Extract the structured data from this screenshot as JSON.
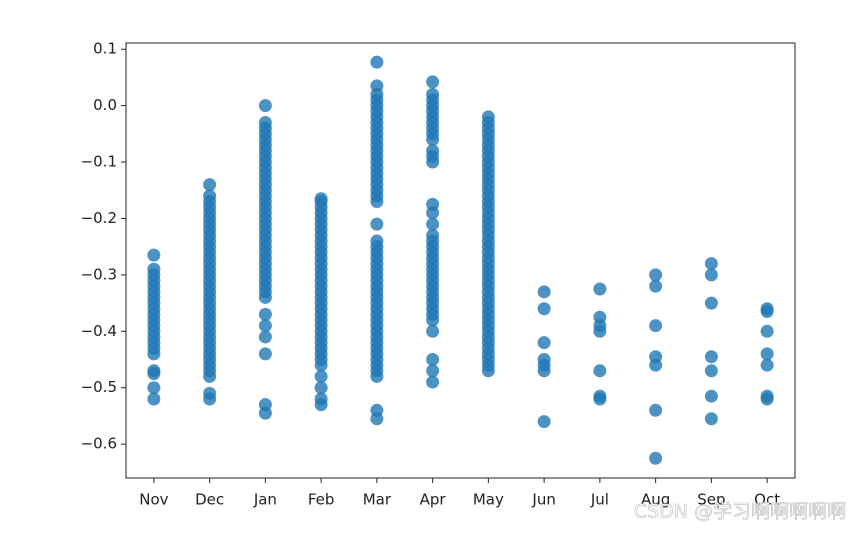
{
  "chart_data": {
    "type": "scatter",
    "categories": [
      "Nov",
      "Dec",
      "Jan",
      "Feb",
      "Mar",
      "Apr",
      "May",
      "Jun",
      "Jul",
      "Aug",
      "Sep",
      "Oct"
    ],
    "values": [
      [
        -0.265,
        -0.29,
        -0.3,
        -0.31,
        -0.32,
        -0.33,
        -0.34,
        -0.35,
        -0.36,
        -0.37,
        -0.38,
        -0.39,
        -0.4,
        -0.41,
        -0.42,
        -0.43,
        -0.44,
        -0.47,
        -0.475,
        -0.5,
        -0.52
      ],
      [
        -0.14,
        -0.16,
        -0.17,
        -0.18,
        -0.19,
        -0.2,
        -0.21,
        -0.22,
        -0.23,
        -0.24,
        -0.25,
        -0.26,
        -0.27,
        -0.28,
        -0.29,
        -0.3,
        -0.31,
        -0.32,
        -0.33,
        -0.34,
        -0.35,
        -0.36,
        -0.37,
        -0.38,
        -0.39,
        -0.4,
        -0.41,
        -0.42,
        -0.43,
        -0.44,
        -0.45,
        -0.46,
        -0.47,
        -0.48,
        -0.51,
        -0.52
      ],
      [
        0,
        -0.03,
        -0.04,
        -0.05,
        -0.06,
        -0.07,
        -0.08,
        -0.09,
        -0.1,
        -0.11,
        -0.12,
        -0.13,
        -0.14,
        -0.15,
        -0.16,
        -0.17,
        -0.18,
        -0.19,
        -0.2,
        -0.21,
        -0.22,
        -0.23,
        -0.24,
        -0.25,
        -0.26,
        -0.27,
        -0.28,
        -0.29,
        -0.3,
        -0.31,
        -0.32,
        -0.33,
        -0.34,
        -0.37,
        -0.39,
        -0.41,
        -0.44,
        -0.53,
        -0.545
      ],
      [
        -0.165,
        -0.17,
        -0.18,
        -0.19,
        -0.2,
        -0.21,
        -0.22,
        -0.23,
        -0.24,
        -0.25,
        -0.26,
        -0.27,
        -0.28,
        -0.29,
        -0.3,
        -0.31,
        -0.32,
        -0.33,
        -0.34,
        -0.35,
        -0.36,
        -0.37,
        -0.38,
        -0.39,
        -0.4,
        -0.41,
        -0.42,
        -0.43,
        -0.44,
        -0.45,
        -0.46,
        -0.48,
        -0.5,
        -0.52,
        -0.53
      ],
      [
        0.077,
        0.035,
        0.02,
        0.01,
        0,
        -0.01,
        -0.02,
        -0.03,
        -0.04,
        -0.05,
        -0.06,
        -0.07,
        -0.08,
        -0.09,
        -0.1,
        -0.11,
        -0.12,
        -0.13,
        -0.14,
        -0.15,
        -0.16,
        -0.17,
        -0.21,
        -0.24,
        -0.25,
        -0.26,
        -0.27,
        -0.28,
        -0.29,
        -0.3,
        -0.31,
        -0.32,
        -0.33,
        -0.34,
        -0.35,
        -0.36,
        -0.37,
        -0.38,
        -0.39,
        -0.4,
        -0.41,
        -0.42,
        -0.43,
        -0.44,
        -0.45,
        -0.46,
        -0.47,
        -0.48,
        -0.54,
        -0.555
      ],
      [
        0.042,
        0.02,
        0.01,
        0,
        -0.01,
        -0.02,
        -0.03,
        -0.04,
        -0.05,
        -0.06,
        -0.08,
        -0.09,
        -0.1,
        -0.175,
        -0.19,
        -0.21,
        -0.23,
        -0.24,
        -0.25,
        -0.26,
        -0.27,
        -0.28,
        -0.29,
        -0.3,
        -0.31,
        -0.32,
        -0.33,
        -0.34,
        -0.35,
        -0.36,
        -0.37,
        -0.38,
        -0.4,
        -0.45,
        -0.47,
        -0.49
      ],
      [
        -0.02,
        -0.03,
        -0.04,
        -0.05,
        -0.06,
        -0.07,
        -0.08,
        -0.09,
        -0.1,
        -0.11,
        -0.12,
        -0.13,
        -0.14,
        -0.15,
        -0.16,
        -0.17,
        -0.18,
        -0.19,
        -0.2,
        -0.21,
        -0.22,
        -0.23,
        -0.24,
        -0.25,
        -0.26,
        -0.27,
        -0.28,
        -0.29,
        -0.3,
        -0.31,
        -0.32,
        -0.33,
        -0.34,
        -0.35,
        -0.36,
        -0.37,
        -0.38,
        -0.39,
        -0.4,
        -0.41,
        -0.42,
        -0.43,
        -0.44,
        -0.45,
        -0.46,
        -0.47
      ],
      [
        -0.33,
        -0.36,
        -0.42,
        -0.45,
        -0.46,
        -0.47,
        -0.56
      ],
      [
        -0.325,
        -0.375,
        -0.39,
        -0.4,
        -0.47,
        -0.515,
        -0.52
      ],
      [
        -0.3,
        -0.32,
        -0.39,
        -0.445,
        -0.46,
        -0.54,
        -0.625
      ],
      [
        -0.28,
        -0.3,
        -0.35,
        -0.445,
        -0.47,
        -0.515,
        -0.555
      ],
      [
        -0.36,
        -0.365,
        -0.4,
        -0.44,
        -0.46,
        -0.515,
        -0.52
      ]
    ],
    "color": "#1f77b4",
    "ylim": [
      -0.66,
      0.111
    ],
    "yticks": [
      0.1,
      {
        "value": 0,
        "label": "0.0"
      },
      {
        "value": -0.1,
        "label": "−0.1"
      },
      {
        "value": -0.2,
        "label": "−0.2"
      },
      {
        "value": -0.3,
        "label": "−0.3"
      },
      {
        "value": -0.4,
        "label": "−0.4"
      },
      {
        "value": -0.5,
        "label": "−0.5"
      },
      {
        "value": -0.6,
        "label": "−0.6"
      }
    ],
    "grid": false,
    "watermark": "CSDN @学习啊啊啊啊啊"
  }
}
